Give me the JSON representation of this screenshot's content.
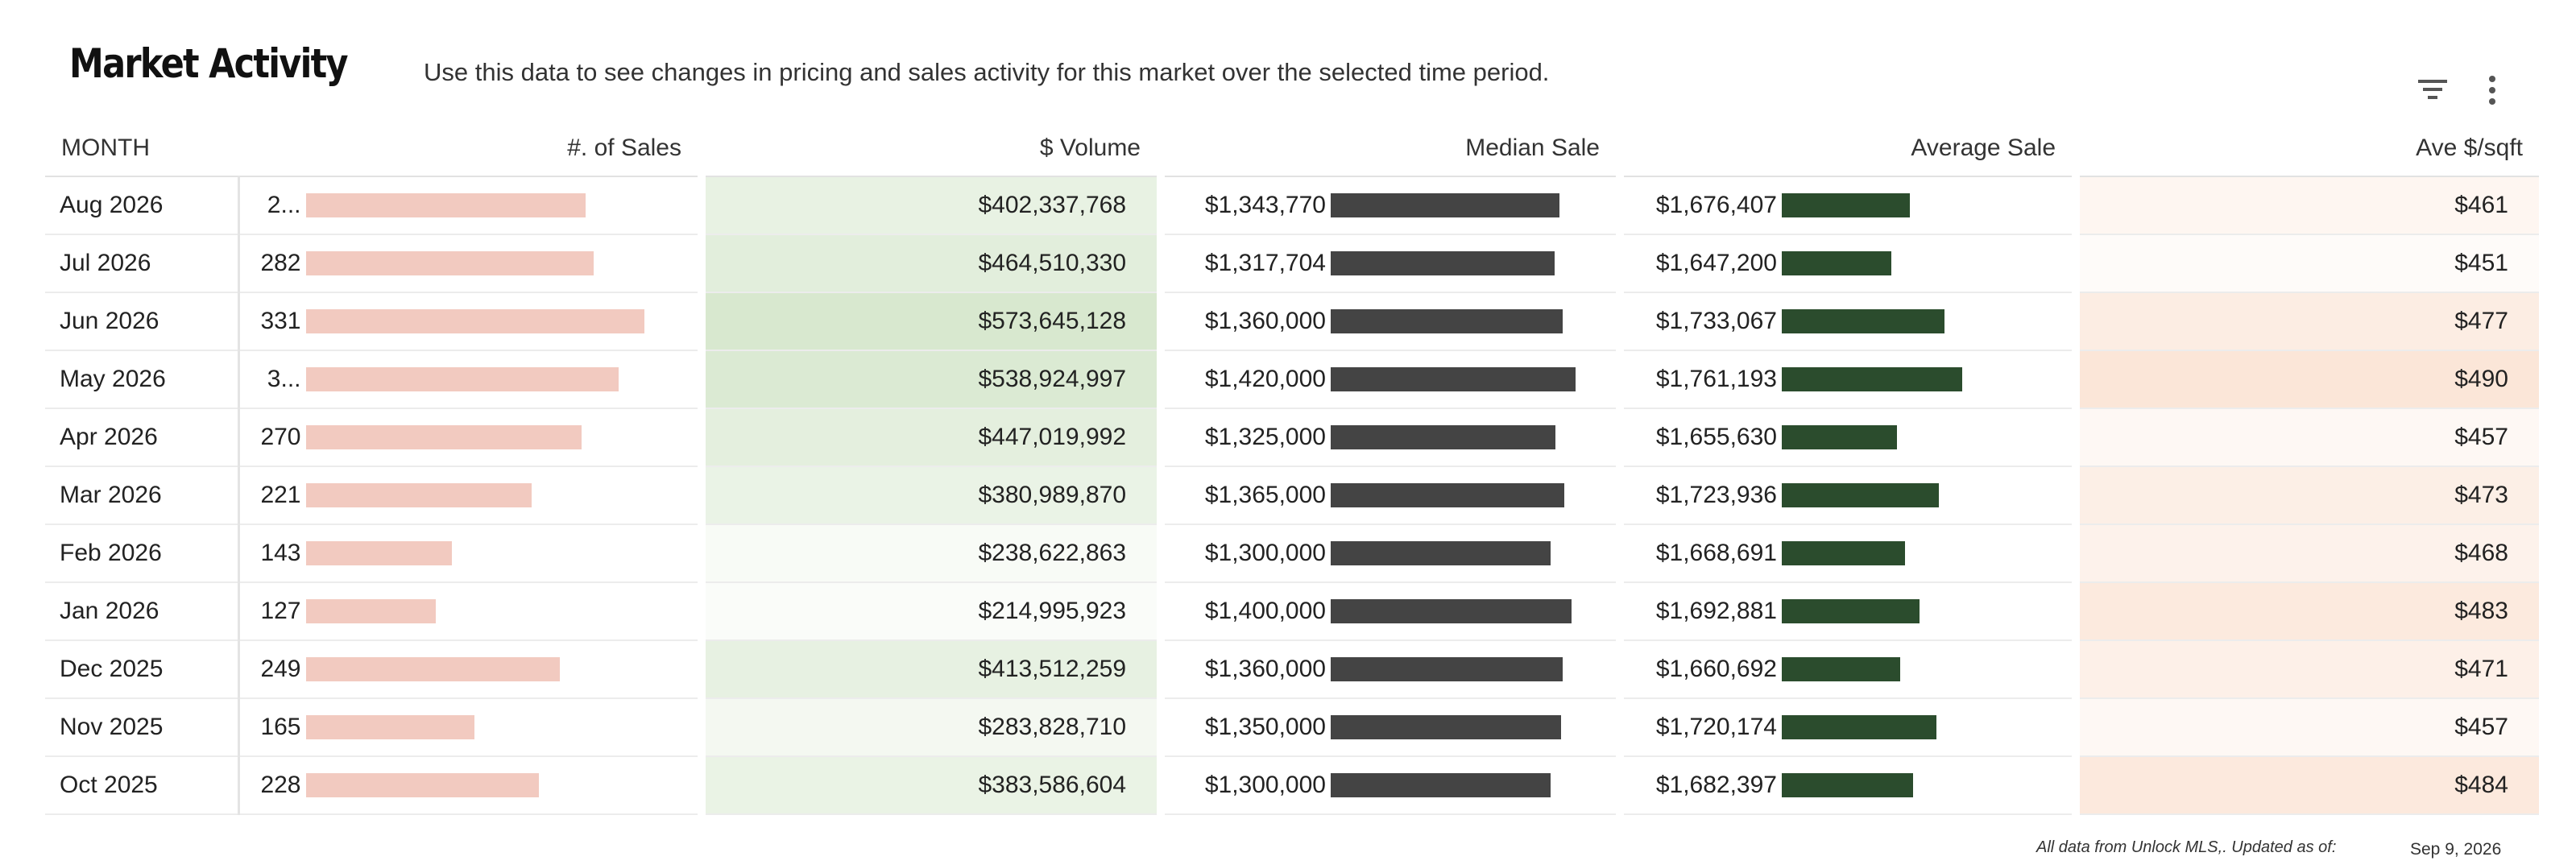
{
  "header": {
    "title": "Market Activity",
    "subtitle": "Use this data to see changes in pricing and sales activity for this market over the selected time period."
  },
  "toolbar": {
    "filter_icon": "filter-icon",
    "more_icon": "more-vertical-icon"
  },
  "table": {
    "columns": [
      "MONTH",
      "#. of Sales",
      "$ Volume",
      "Median Sale",
      "Average Sale",
      "Ave $/sqft"
    ],
    "rows": [
      {
        "month": "Aug 2026",
        "sales": "2...",
        "sales_value": 274,
        "volume": "$402,337,768",
        "volume_value": 402337768,
        "median": "$1,343,770",
        "median_value": 1343770,
        "average": "$1,676,407",
        "average_value": 1676407,
        "sqft": "$461",
        "sqft_value": 461
      },
      {
        "month": "Jul 2026",
        "sales": "282",
        "sales_value": 282,
        "volume": "$464,510,330",
        "volume_value": 464510330,
        "median": "$1,317,704",
        "median_value": 1317704,
        "average": "$1,647,200",
        "average_value": 1647200,
        "sqft": "$451",
        "sqft_value": 451
      },
      {
        "month": "Jun 2026",
        "sales": "331",
        "sales_value": 331,
        "volume": "$573,645,128",
        "volume_value": 573645128,
        "median": "$1,360,000",
        "median_value": 1360000,
        "average": "$1,733,067",
        "average_value": 1733067,
        "sqft": "$477",
        "sqft_value": 477
      },
      {
        "month": "May 2026",
        "sales": "3...",
        "sales_value": 306,
        "volume": "$538,924,997",
        "volume_value": 538924997,
        "median": "$1,420,000",
        "median_value": 1420000,
        "average": "$1,761,193",
        "average_value": 1761193,
        "sqft": "$490",
        "sqft_value": 490
      },
      {
        "month": "Apr 2026",
        "sales": "270",
        "sales_value": 270,
        "volume": "$447,019,992",
        "volume_value": 447019992,
        "median": "$1,325,000",
        "median_value": 1325000,
        "average": "$1,655,630",
        "average_value": 1655630,
        "sqft": "$457",
        "sqft_value": 457
      },
      {
        "month": "Mar 2026",
        "sales": "221",
        "sales_value": 221,
        "volume": "$380,989,870",
        "volume_value": 380989870,
        "median": "$1,365,000",
        "median_value": 1365000,
        "average": "$1,723,936",
        "average_value": 1723936,
        "sqft": "$473",
        "sqft_value": 473
      },
      {
        "month": "Feb 2026",
        "sales": "143",
        "sales_value": 143,
        "volume": "$238,622,863",
        "volume_value": 238622863,
        "median": "$1,300,000",
        "median_value": 1300000,
        "average": "$1,668,691",
        "average_value": 1668691,
        "sqft": "$468",
        "sqft_value": 468
      },
      {
        "month": "Jan 2026",
        "sales": "127",
        "sales_value": 127,
        "volume": "$214,995,923",
        "volume_value": 214995923,
        "median": "$1,400,000",
        "median_value": 1400000,
        "average": "$1,692,881",
        "average_value": 1692881,
        "sqft": "$483",
        "sqft_value": 483
      },
      {
        "month": "Dec 2025",
        "sales": "249",
        "sales_value": 249,
        "volume": "$413,512,259",
        "volume_value": 413512259,
        "median": "$1,360,000",
        "median_value": 1360000,
        "average": "$1,660,692",
        "average_value": 1660692,
        "sqft": "$471",
        "sqft_value": 471
      },
      {
        "month": "Nov 2025",
        "sales": "165",
        "sales_value": 165,
        "volume": "$283,828,710",
        "volume_value": 283828710,
        "median": "$1,350,000",
        "median_value": 1350000,
        "average": "$1,720,174",
        "average_value": 1720174,
        "sqft": "$457",
        "sqft_value": 457
      },
      {
        "month": "Oct 2025",
        "sales": "228",
        "sales_value": 228,
        "volume": "$383,586,604",
        "volume_value": 383586604,
        "median": "$1,300,000",
        "median_value": 1300000,
        "average": "$1,682,397",
        "average_value": 1682397,
        "sqft": "$484",
        "sqft_value": 484
      }
    ]
  },
  "footer": {
    "note": "All data from Unlock MLS,. Updated as of:",
    "date": "Sep 9, 2026"
  },
  "colors": {
    "sales_bar": "#f2cac0",
    "median_bar": "#444444",
    "average_bar": "#2b4c2d",
    "volume_heat": "#d8e8cf",
    "sqft_heat": "#fbe6d8"
  }
}
